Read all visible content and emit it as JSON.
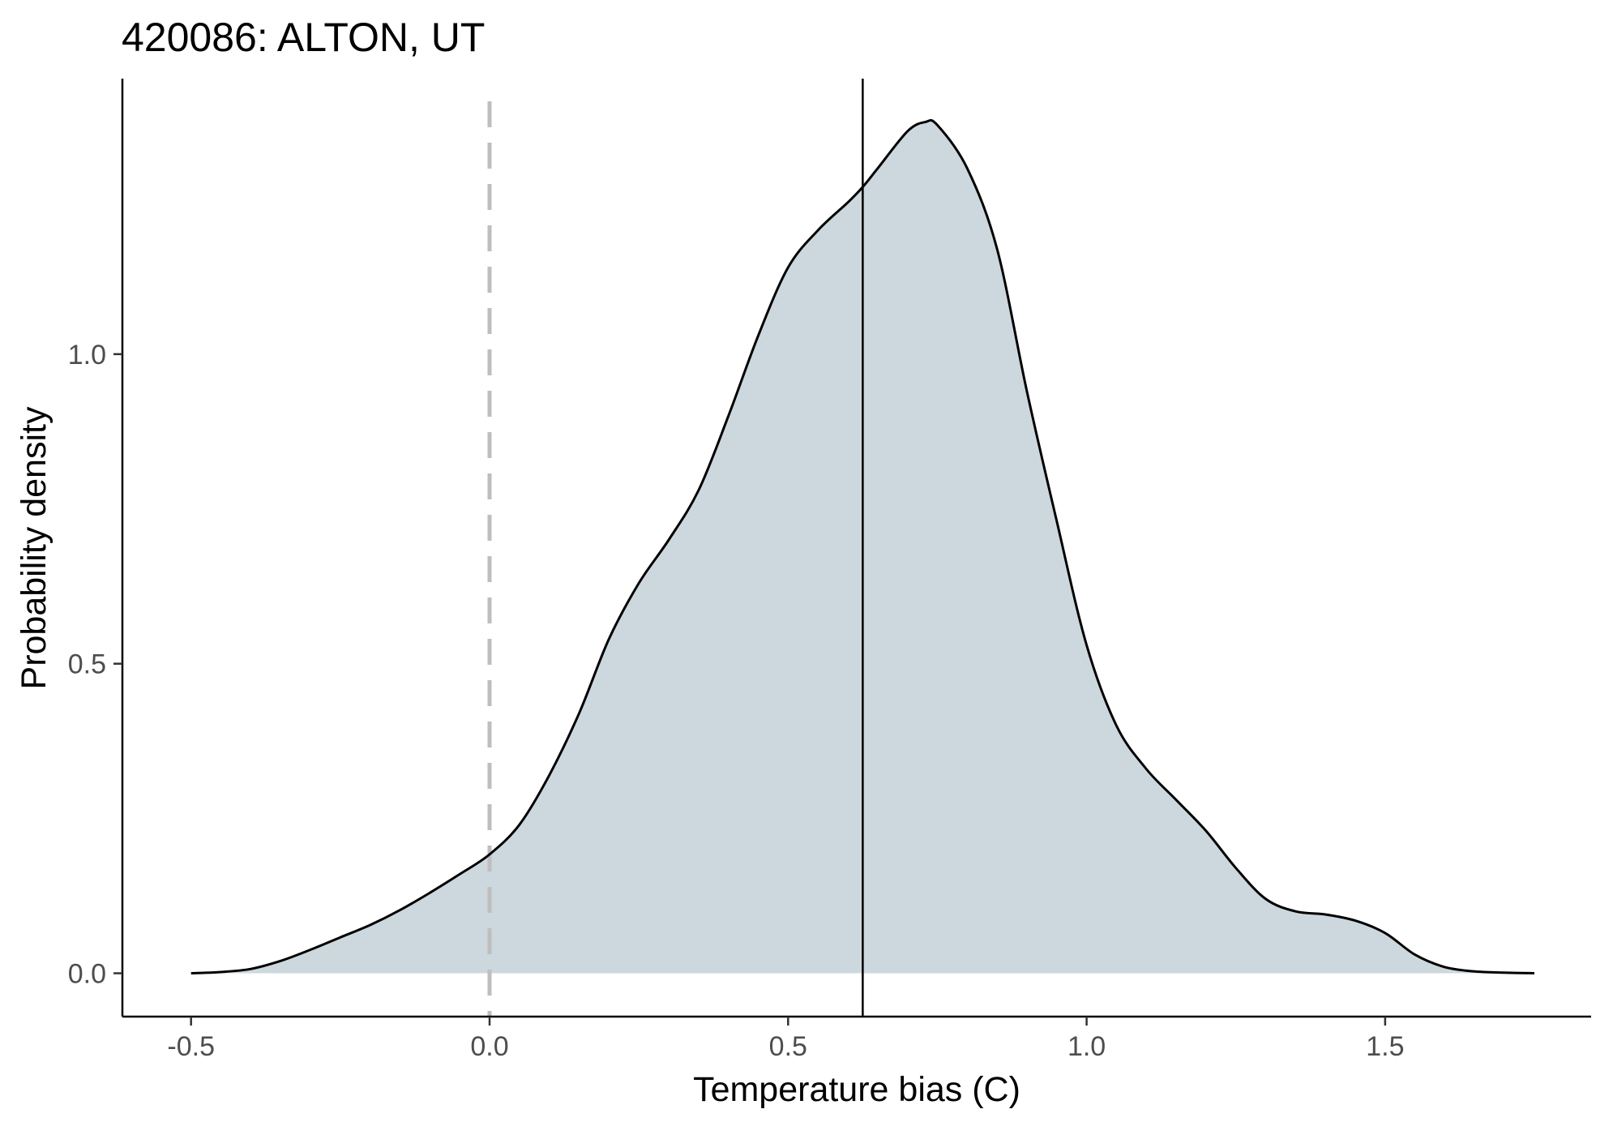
{
  "chart_data": {
    "type": "area",
    "title": "420086: ALTON, UT",
    "xlabel": "Temperature bias (C)",
    "ylabel": "Probability density",
    "xlim": [
      -0.615,
      1.845
    ],
    "ylim": [
      -0.07,
      1.445
    ],
    "x_ticks": [
      -0.5,
      0.0,
      0.5,
      1.0,
      1.5
    ],
    "x_tick_labels": [
      "-0.5",
      "0.0",
      "0.5",
      "1.0",
      "1.5"
    ],
    "y_ticks": [
      0.0,
      0.5,
      1.0
    ],
    "y_tick_labels": [
      "0.0",
      "0.5",
      "1.0"
    ],
    "grid": false,
    "legend": "none",
    "fill_color": "#cdd7de",
    "line_color": "#000000",
    "reference_lines": [
      {
        "x": 0.0,
        "style": "dashed",
        "color": "#bebebe"
      },
      {
        "x": 0.625,
        "style": "solid",
        "color": "#000000"
      }
    ],
    "series": [
      {
        "x": [
          -0.5,
          -0.45,
          -0.4,
          -0.35,
          -0.3,
          -0.25,
          -0.2,
          -0.15,
          -0.1,
          -0.05,
          0.0,
          0.05,
          0.1,
          0.15,
          0.2,
          0.25,
          0.3,
          0.35,
          0.4,
          0.45,
          0.5,
          0.55,
          0.6,
          0.625,
          0.65,
          0.7,
          0.73,
          0.75,
          0.8,
          0.85,
          0.9,
          0.95,
          1.0,
          1.05,
          1.1,
          1.15,
          1.2,
          1.25,
          1.3,
          1.35,
          1.4,
          1.45,
          1.5,
          1.55,
          1.6,
          1.65,
          1.7,
          1.75
        ],
        "y": [
          0.0,
          0.002,
          0.007,
          0.02,
          0.038,
          0.058,
          0.078,
          0.102,
          0.13,
          0.16,
          0.192,
          0.24,
          0.32,
          0.42,
          0.54,
          0.63,
          0.7,
          0.78,
          0.9,
          1.03,
          1.14,
          1.2,
          1.245,
          1.27,
          1.3,
          1.36,
          1.375,
          1.37,
          1.3,
          1.17,
          0.94,
          0.73,
          0.53,
          0.4,
          0.33,
          0.28,
          0.23,
          0.17,
          0.12,
          0.1,
          0.095,
          0.085,
          0.065,
          0.03,
          0.01,
          0.003,
          0.001,
          0.0
        ]
      }
    ]
  }
}
